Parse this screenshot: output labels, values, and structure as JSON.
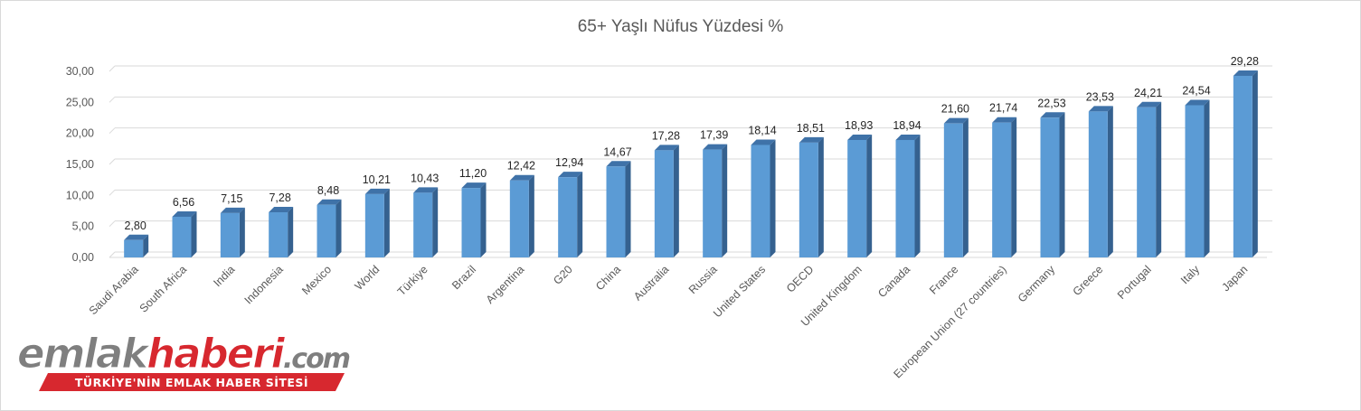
{
  "chart_data": {
    "type": "bar",
    "title": "65+ Yaşlı Nüfus Yüzdesi %",
    "xlabel": "",
    "ylabel": "",
    "ylim": [
      0,
      30
    ],
    "yticks": [
      "0,00",
      "5,00",
      "10,00",
      "15,00",
      "20,00",
      "25,00",
      "30,00"
    ],
    "grid": true,
    "bar_color": "#5b9bd5",
    "categories": [
      "Saudi Arabia",
      "South Africa",
      "India",
      "Indonesia",
      "Mexico",
      "World",
      "Türkiye",
      "Brazil",
      "Argentina",
      "G20",
      "China",
      "Australia",
      "Russia",
      "United States",
      "OECD",
      "United Kingdom",
      "Canada",
      "France",
      "European Union (27 countries)",
      "Germany",
      "Greece",
      "Portugal",
      "Italy",
      "Japan"
    ],
    "values": [
      2.8,
      6.56,
      7.15,
      7.28,
      8.48,
      10.21,
      10.43,
      11.2,
      12.42,
      12.94,
      14.67,
      17.28,
      17.39,
      18.14,
      18.51,
      18.93,
      18.94,
      21.6,
      21.74,
      22.53,
      23.53,
      24.21,
      24.54,
      29.28
    ],
    "value_labels": [
      "2,80",
      "6,56",
      "7,15",
      "7,28",
      "8,48",
      "10,21",
      "10,43",
      "11,20",
      "12,42",
      "12,94",
      "14,67",
      "17,28",
      "17,39",
      "18,14",
      "18,51",
      "18,93",
      "18,94",
      "21,60",
      "21,74",
      "22,53",
      "23,53",
      "24,21",
      "24,54",
      "29,28"
    ]
  },
  "logo": {
    "part1": "emlak",
    "part2": "haberi",
    "part3": ".com",
    "tagline": "TÜRKİYE'NİN EMLAK HABER SİTESİ",
    "colors": {
      "gray": "#7f7f7f",
      "red": "#d7282f"
    }
  }
}
